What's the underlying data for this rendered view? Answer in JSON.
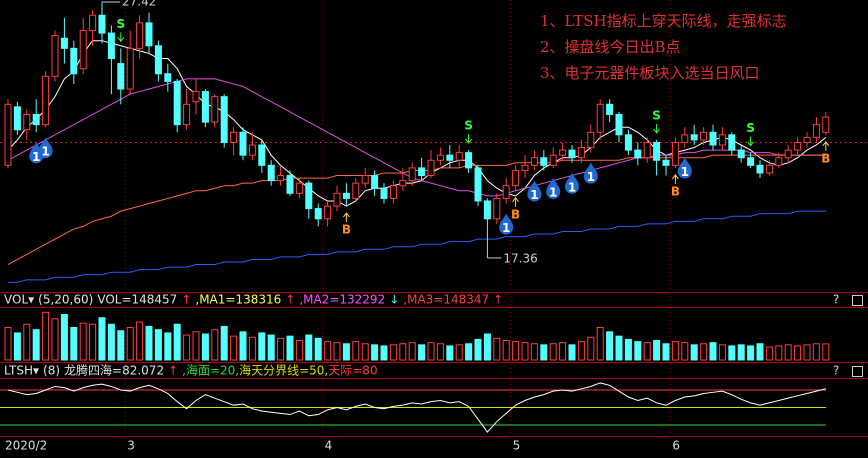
{
  "chart_data": [
    {
      "type": "candlestick",
      "categories": [
        "2020/2",
        null,
        null,
        null,
        null,
        null,
        null,
        null,
        null,
        null,
        null,
        null,
        null,
        "3",
        null,
        null,
        null,
        null,
        null,
        null,
        null,
        null,
        null,
        null,
        null,
        null,
        null,
        null,
        null,
        null,
        null,
        null,
        null,
        null,
        "4",
        null,
        null,
        null,
        null,
        null,
        null,
        null,
        null,
        null,
        null,
        null,
        null,
        null,
        null,
        null,
        null,
        null,
        null,
        null,
        "5",
        null,
        null,
        null,
        null,
        null,
        null,
        null,
        null,
        null,
        null,
        null,
        null,
        null,
        null,
        null,
        null,
        "6",
        null,
        null,
        null,
        null,
        null,
        null,
        null,
        null,
        null,
        null,
        null,
        null,
        null,
        null,
        null,
        null
      ],
      "open": [
        21.0,
        23.3,
        22.4,
        23.0,
        22.6,
        24.5,
        26.0,
        25.6,
        24.8,
        26.3,
        26.9,
        26.2,
        25.0,
        24.0,
        25.6,
        26.6,
        25.7,
        24.6,
        24.3,
        22.6,
        23.5,
        23.9,
        22.7,
        23.7,
        21.9,
        22.3,
        21.4,
        21.8,
        21.0,
        20.4,
        20.6,
        19.9,
        20.3,
        19.3,
        18.9,
        19.4,
        19.9,
        19.7,
        20.3,
        20.6,
        20.1,
        19.7,
        20.2,
        20.4,
        20.9,
        20.6,
        21.2,
        21.4,
        21.2,
        21.5,
        20.9,
        19.6,
        18.9,
        19.7,
        20.2,
        20.8,
        21.0,
        21.3,
        21.0,
        21.4,
        21.6,
        21.3,
        21.7,
        22.3,
        23.4,
        23.0,
        22.2,
        21.6,
        21.3,
        21.9,
        21.2,
        21.0,
        21.9,
        22.2,
        22.0,
        22.3,
        21.8,
        22.2,
        21.6,
        21.3,
        21.0,
        20.7,
        21.0,
        21.3,
        21.6,
        21.9,
        22.1,
        22.3
      ],
      "close": [
        23.4,
        22.4,
        23.0,
        22.6,
        24.5,
        26.1,
        25.6,
        24.6,
        26.3,
        26.9,
        26.2,
        25.2,
        24.0,
        25.6,
        26.6,
        25.7,
        24.6,
        24.3,
        22.6,
        23.4,
        23.9,
        22.7,
        23.7,
        21.9,
        22.3,
        21.4,
        21.8,
        21.0,
        20.4,
        20.6,
        19.9,
        20.3,
        19.3,
        18.9,
        19.4,
        19.9,
        19.7,
        20.3,
        20.6,
        20.1,
        19.7,
        20.2,
        20.4,
        20.9,
        20.6,
        21.2,
        21.4,
        21.2,
        21.5,
        20.9,
        19.6,
        18.9,
        19.7,
        20.2,
        20.8,
        21.0,
        21.3,
        21.0,
        21.4,
        21.6,
        21.3,
        21.7,
        22.3,
        23.4,
        23.0,
        22.2,
        21.6,
        21.3,
        21.9,
        21.2,
        21.0,
        21.9,
        22.2,
        22.0,
        22.3,
        21.8,
        22.2,
        21.6,
        21.3,
        21.0,
        20.7,
        21.0,
        21.3,
        21.6,
        21.9,
        22.1,
        22.6,
        22.9
      ],
      "low": [
        20.9,
        22.2,
        22.0,
        22.3,
        22.5,
        24.3,
        25.0,
        24.2,
        24.6,
        25.7,
        25.8,
        23.8,
        23.4,
        23.8,
        25.2,
        25.4,
        24.3,
        23.9,
        22.3,
        22.4,
        23.0,
        22.5,
        22.5,
        21.7,
        21.4,
        21.2,
        21.2,
        20.7,
        20.2,
        20.2,
        19.8,
        19.7,
        18.9,
        18.6,
        18.6,
        19.2,
        19.4,
        19.6,
        20.1,
        19.8,
        19.5,
        19.5,
        20.0,
        20.2,
        20.4,
        20.5,
        21.0,
        20.9,
        20.9,
        20.7,
        19.4,
        17.36,
        18.7,
        19.5,
        20.0,
        20.5,
        20.8,
        20.8,
        20.9,
        21.2,
        21.1,
        21.1,
        21.5,
        22.0,
        22.7,
        21.9,
        21.4,
        21.0,
        21.1,
        20.6,
        20.6,
        20.9,
        21.7,
        21.8,
        21.8,
        21.6,
        21.6,
        21.4,
        21.1,
        20.9,
        20.5,
        20.6,
        20.9,
        21.1,
        21.4,
        21.7,
        21.9,
        22.2
      ],
      "high": [
        23.6,
        23.5,
        23.2,
        23.6,
        24.7,
        26.3,
        26.8,
        25.9,
        26.8,
        27.1,
        27.42,
        26.5,
        25.6,
        26.3,
        26.9,
        27.0,
        25.9,
        25.0,
        24.4,
        24.0,
        24.4,
        24.0,
        23.8,
        23.8,
        22.5,
        22.5,
        22.3,
        22.0,
        21.2,
        21.0,
        20.8,
        20.5,
        20.4,
        19.5,
        19.6,
        20.2,
        20.3,
        20.5,
        20.9,
        20.8,
        20.3,
        20.4,
        20.9,
        21.1,
        21.3,
        21.6,
        21.7,
        21.8,
        21.8,
        21.6,
        21.0,
        19.7,
        19.9,
        20.5,
        21.0,
        21.4,
        21.6,
        21.6,
        21.7,
        21.9,
        21.8,
        22.0,
        22.6,
        23.6,
        23.6,
        23.1,
        22.4,
        21.9,
        22.1,
        22.0,
        21.4,
        22.1,
        22.5,
        22.6,
        22.5,
        22.6,
        22.5,
        22.3,
        21.8,
        21.5,
        21.2,
        21.2,
        21.5,
        21.8,
        22.1,
        22.3,
        22.9,
        23.1
      ],
      "up_color": "#ff3c3c",
      "down_color": "#54ffff",
      "ylim": [
        16.1,
        27.5
      ],
      "reference_line": 21.9,
      "series": [
        {
          "color": "#ffffff",
          "values": [
            21.6,
            22.0,
            22.5,
            22.8,
            23.2,
            23.7,
            24.4,
            24.7,
            25.4,
            25.9,
            25.9,
            25.8,
            25.7,
            25.6,
            25.5,
            25.4,
            25.2,
            25.2,
            24.8,
            24.1,
            23.8,
            23.4,
            23.3,
            23.1,
            22.8,
            22.4,
            22.2,
            22.0,
            21.4,
            21.0,
            20.7,
            20.4,
            20.1,
            19.8,
            19.6,
            19.6,
            19.4,
            19.6,
            20.0,
            20.1,
            20.1,
            20.2,
            20.3,
            20.3,
            20.4,
            20.7,
            20.9,
            21.1,
            21.2,
            21.2,
            20.9,
            20.4,
            20.1,
            19.9,
            19.8,
            20.1,
            20.6,
            20.9,
            21.1,
            21.3,
            21.3,
            21.4,
            21.7,
            22.1,
            22.3,
            22.5,
            22.5,
            22.3,
            22.0,
            21.6,
            21.4,
            21.5,
            21.6,
            21.7,
            21.9,
            22.0,
            22.1,
            22.0,
            21.8,
            21.6,
            21.3,
            21.1,
            21.0,
            21.1,
            21.3,
            21.6,
            21.8,
            22.1
          ]
        },
        {
          "color": "#e050e0",
          "values": [
            21.2,
            21.4,
            21.6,
            21.8,
            22.0,
            22.2,
            22.4,
            22.6,
            22.8,
            23.0,
            23.2,
            23.4,
            23.6,
            23.8,
            23.9,
            24.0,
            24.1,
            24.2,
            24.3,
            24.4,
            24.4,
            24.4,
            24.4,
            24.3,
            24.2,
            24.1,
            23.9,
            23.7,
            23.5,
            23.3,
            23.1,
            22.9,
            22.7,
            22.5,
            22.3,
            22.1,
            21.9,
            21.7,
            21.5,
            21.3,
            21.1,
            20.9,
            20.7,
            20.5,
            20.4,
            20.3,
            20.2,
            20.1,
            20.0,
            20.0,
            19.9,
            19.8,
            19.8,
            19.9,
            20.0,
            20.1,
            20.2,
            20.3,
            20.4,
            20.5,
            20.6,
            20.7,
            20.8,
            20.9,
            21.0,
            21.1,
            21.2,
            21.3,
            21.3,
            21.4,
            21.4,
            21.4,
            21.5,
            21.5,
            21.6,
            21.6,
            21.6,
            21.6,
            21.6,
            21.5,
            21.5,
            21.5,
            21.4,
            21.4,
            21.4,
            21.4,
            21.4,
            21.4
          ]
        },
        {
          "color": "#ff6a3a",
          "values": [
            17.1,
            17.3,
            17.5,
            17.7,
            17.9,
            18.1,
            18.3,
            18.5,
            18.6,
            18.8,
            18.9,
            19.0,
            19.2,
            19.3,
            19.4,
            19.5,
            19.6,
            19.7,
            19.8,
            19.9,
            20.0,
            20.0,
            20.1,
            20.2,
            20.2,
            20.3,
            20.3,
            20.4,
            20.4,
            20.4,
            20.5,
            20.5,
            20.5,
            20.5,
            20.5,
            20.6,
            20.6,
            20.6,
            20.6,
            20.6,
            20.7,
            20.7,
            20.7,
            20.8,
            20.8,
            20.8,
            20.9,
            20.9,
            20.9,
            21.0,
            21.0,
            21.0,
            21.0,
            21.0,
            21.1,
            21.1,
            21.1,
            21.1,
            21.1,
            21.2,
            21.2,
            21.2,
            21.2,
            21.2,
            21.2,
            21.2,
            21.3,
            21.3,
            21.3,
            21.3,
            21.3,
            21.3,
            21.3,
            21.3,
            21.3,
            21.4,
            21.4,
            21.4,
            21.4,
            21.4,
            21.4,
            21.4,
            21.4,
            21.4,
            21.4,
            21.4,
            21.4,
            21.4
          ]
        },
        {
          "color": "#2a5cff",
          "values": [
            16.4,
            16.4,
            16.5,
            16.5,
            16.5,
            16.6,
            16.6,
            16.6,
            16.7,
            16.7,
            16.7,
            16.8,
            16.8,
            16.8,
            16.9,
            16.9,
            16.9,
            17.0,
            17.0,
            17.0,
            17.1,
            17.1,
            17.1,
            17.2,
            17.2,
            17.2,
            17.3,
            17.3,
            17.3,
            17.4,
            17.4,
            17.4,
            17.5,
            17.5,
            17.5,
            17.6,
            17.6,
            17.6,
            17.7,
            17.7,
            17.7,
            17.8,
            17.8,
            17.8,
            17.9,
            17.9,
            17.9,
            18.0,
            18.0,
            18.0,
            18.1,
            18.1,
            18.1,
            18.2,
            18.2,
            18.2,
            18.3,
            18.3,
            18.3,
            18.4,
            18.4,
            18.4,
            18.5,
            18.5,
            18.5,
            18.6,
            18.6,
            18.6,
            18.7,
            18.7,
            18.7,
            18.8,
            18.8,
            18.8,
            18.9,
            18.9,
            18.9,
            19.0,
            19.0,
            19.0,
            19.1,
            19.1,
            19.1,
            19.1,
            19.2,
            19.2,
            19.2,
            19.2
          ]
        }
      ],
      "signals": [
        null,
        null,
        null,
        "1",
        "1",
        null,
        null,
        null,
        null,
        null,
        null,
        null,
        "S",
        null,
        null,
        null,
        null,
        null,
        null,
        null,
        null,
        null,
        null,
        null,
        null,
        null,
        null,
        null,
        null,
        null,
        null,
        null,
        null,
        null,
        null,
        null,
        "B",
        null,
        null,
        null,
        null,
        null,
        null,
        null,
        null,
        null,
        null,
        null,
        null,
        "S",
        null,
        null,
        null,
        "1",
        "B",
        null,
        "1",
        null,
        "1",
        null,
        "1",
        null,
        "1",
        null,
        null,
        null,
        null,
        null,
        null,
        "S",
        null,
        "B",
        "1",
        null,
        null,
        null,
        null,
        null,
        null,
        "S",
        null,
        null,
        null,
        null,
        null,
        null,
        null,
        "B"
      ],
      "notes": [
        "1、LTSH指标上穿天际线，走强标志",
        "2、操盘线今日出B点",
        "3、电子元器件板块入选当日风口"
      ]
    },
    {
      "type": "bar",
      "header": [
        {
          "text": "VOL▾",
          "color": "#e0e0e0"
        },
        {
          "text": "(5,20,60)",
          "color": "#e0e0e0"
        },
        {
          "text": "VOL=148457",
          "color": "#e0e0e0"
        },
        {
          "text": "↑",
          "color": "#ff3c3c"
        },
        {
          "text": ",MA1=138316",
          "color": "#ffff40"
        },
        {
          "text": "↑",
          "color": "#ff3c3c"
        },
        {
          "text": ",MA2=132292",
          "color": "#ff50ff"
        },
        {
          "text": "↓",
          "color": "#40ffff"
        },
        {
          "text": ",MA3=148347",
          "color": "#ff4040"
        },
        {
          "text": "↑",
          "color": "#ff3c3c"
        }
      ],
      "help": "?",
      "values": [
        300000,
        250000,
        330000,
        280000,
        440000,
        380000,
        420000,
        300000,
        340000,
        330000,
        390000,
        330000,
        270000,
        300000,
        350000,
        310000,
        280000,
        250000,
        330000,
        230000,
        260000,
        240000,
        280000,
        310000,
        220000,
        260000,
        210000,
        250000,
        230000,
        200000,
        220000,
        180000,
        230000,
        200000,
        170000,
        160000,
        150000,
        170000,
        150000,
        140000,
        130000,
        140000,
        150000,
        160000,
        140000,
        160000,
        150000,
        130000,
        140000,
        150000,
        190000,
        240000,
        200000,
        180000,
        170000,
        160000,
        150000,
        140000,
        150000,
        160000,
        140000,
        170000,
        210000,
        300000,
        260000,
        220000,
        190000,
        170000,
        160000,
        180000,
        150000,
        170000,
        160000,
        140000,
        150000,
        160000,
        140000,
        130000,
        140000,
        130000,
        150000,
        120000,
        130000,
        140000,
        130000,
        140000,
        150000,
        148457
      ],
      "ylim": [
        0,
        480000
      ]
    },
    {
      "type": "line",
      "header": [
        {
          "text": "LTSH▾",
          "color": "#e0e0e0"
        },
        {
          "text": "(8)",
          "color": "#e0e0e0"
        },
        {
          "text": "龙腾四海=82.072",
          "color": "#e0e0e0"
        },
        {
          "text": "↑",
          "color": "#ff3c3c"
        }
      ],
      "help": "?",
      "color": "#ffffff",
      "values": [
        80,
        76,
        72,
        74,
        80,
        86,
        84,
        78,
        84,
        88,
        90,
        86,
        80,
        78,
        84,
        88,
        82,
        74,
        60,
        48,
        62,
        72,
        66,
        60,
        54,
        56,
        48,
        44,
        42,
        40,
        38,
        44,
        36,
        38,
        46,
        50,
        46,
        52,
        56,
        50,
        48,
        52,
        54,
        58,
        56,
        60,
        62,
        58,
        60,
        52,
        30,
        8,
        26,
        40,
        54,
        62,
        68,
        72,
        78,
        80,
        78,
        82,
        86,
        92,
        88,
        78,
        68,
        62,
        66,
        58,
        54,
        62,
        68,
        70,
        74,
        76,
        78,
        72,
        64,
        58,
        54,
        58,
        62,
        66,
        70,
        74,
        78,
        82.072
      ],
      "ylim": [
        3,
        121
      ],
      "levels": [
        {
          "value": 20,
          "label": ",海面=20,",
          "color": "#33dd33"
        },
        {
          "value": 50,
          "label": "海天分界线=50,",
          "color": "#dddd00"
        },
        {
          "value": 80,
          "label": "天际=80",
          "color": "#ff3c3c"
        }
      ]
    }
  ]
}
